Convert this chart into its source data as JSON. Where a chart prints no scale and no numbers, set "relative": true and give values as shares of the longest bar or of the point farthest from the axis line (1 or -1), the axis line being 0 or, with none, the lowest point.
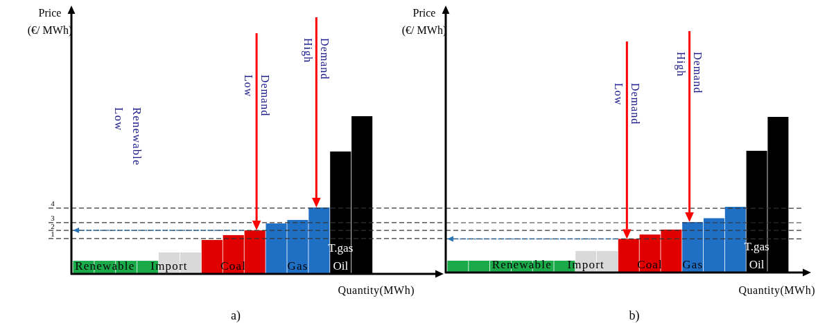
{
  "chart_data": [
    {
      "type": "bar",
      "title": "a)",
      "xlabel": "Quantity(MWh)",
      "ylabel": "Price (€/ MWh)",
      "relative": true,
      "categories": [
        null,
        "Renewable",
        null,
        null,
        "Import",
        null,
        null,
        "Coal",
        null,
        null,
        "Gas",
        null,
        "T.gas Oil",
        null
      ],
      "values": [
        0.083,
        0.083,
        0.083,
        0.083,
        0.136,
        0.136,
        0.215,
        0.246,
        0.276,
        0.32,
        0.342,
        0.421,
        0.776,
        1
      ],
      "colors": [
        "#1aaa4a",
        "#1aaa4a",
        "#1aaa4a",
        "#1aaa4a",
        "#d9d9d9",
        "#d9d9d9",
        "#e00000",
        "#e00000",
        "#e00000",
        "#1f6fc5",
        "#1f6fc5",
        "#1f6fc5",
        "#000000",
        "#000000"
      ],
      "ref_lines": [
        {
          "axis": "y",
          "value": 0.224,
          "color": "#333333",
          "line_style": "dashed"
        },
        {
          "axis": "y",
          "value": 0.276,
          "color": "#333333",
          "line_style": "dashed"
        },
        {
          "axis": "y",
          "value": 0.325,
          "color": "#333333",
          "line_style": "dashed"
        },
        {
          "axis": "y",
          "value": 0.417,
          "color": "#333333",
          "line_style": "dashed"
        },
        {
          "axis": "y",
          "value": 0.276,
          "color": "#2e75b6",
          "line_style": "dotted"
        }
      ],
      "annotations": [
        "Low Demand",
        "High Demand",
        "Low Renewable",
        "1",
        "2",
        "3",
        "4"
      ]
    },
    {
      "type": "bar",
      "title": "b)",
      "xlabel": "Quantity(MWh)",
      "ylabel": "Price (€/ MWh)",
      "relative": true,
      "categories": [
        null,
        null,
        null,
        "Renewable",
        null,
        null,
        "Import",
        null,
        null,
        "Coal",
        null,
        "Gas",
        null,
        null,
        "T.gas Oil",
        null
      ],
      "values": [
        0.076,
        0.076,
        0.076,
        0.076,
        0.076,
        0.076,
        0.138,
        0.138,
        0.216,
        0.244,
        0.276,
        0.324,
        0.349,
        0.422,
        0.782,
        1
      ],
      "colors": [
        "#1aaa4a",
        "#1aaa4a",
        "#1aaa4a",
        "#1aaa4a",
        "#1aaa4a",
        "#1aaa4a",
        "#d9d9d9",
        "#d9d9d9",
        "#e00000",
        "#e00000",
        "#e00000",
        "#1f6fc5",
        "#1f6fc5",
        "#1f6fc5",
        "#000000",
        "#000000"
      ],
      "ref_lines": [
        {
          "axis": "y",
          "value": 0.216,
          "color": "#333333",
          "line_style": "dashed"
        },
        {
          "axis": "y",
          "value": 0.271,
          "color": "#333333",
          "line_style": "dashed"
        },
        {
          "axis": "y",
          "value": 0.32,
          "color": "#333333",
          "line_style": "dashed"
        },
        {
          "axis": "y",
          "value": 0.413,
          "color": "#333333",
          "line_style": "dashed"
        },
        {
          "axis": "y",
          "value": 0.216,
          "color": "#2e75b6",
          "line_style": "dotted"
        }
      ],
      "annotations": [
        "Low Demand",
        "High Demand"
      ]
    }
  ]
}
